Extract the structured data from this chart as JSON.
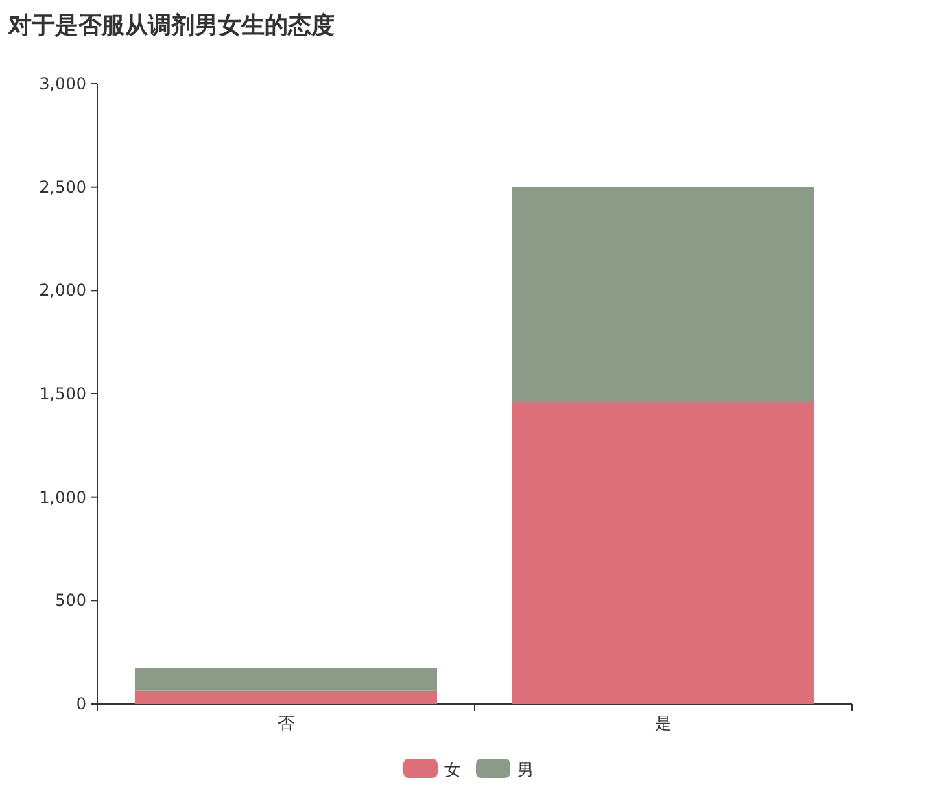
{
  "chart_data": {
    "type": "bar",
    "title": "对于是否服从调剂男女生的态度",
    "categories": [
      "否",
      "是"
    ],
    "series": [
      {
        "name": "女",
        "color": "#dc6f78",
        "values": [
          64,
          1460
        ]
      },
      {
        "name": "男",
        "color": "#8c9b87",
        "values": [
          111,
          1040
        ]
      }
    ],
    "stacked": true,
    "ylim": [
      0,
      3000
    ],
    "yticks": [
      0,
      500,
      {
        "value": 1000,
        "label": "1,000"
      },
      {
        "value": 1500,
        "label": "1,500"
      },
      {
        "value": 2000,
        "label": "2,000"
      },
      {
        "value": 2500,
        "label": "2,500"
      },
      {
        "value": 3000,
        "label": "3,000"
      }
    ],
    "legend": "bottom"
  }
}
